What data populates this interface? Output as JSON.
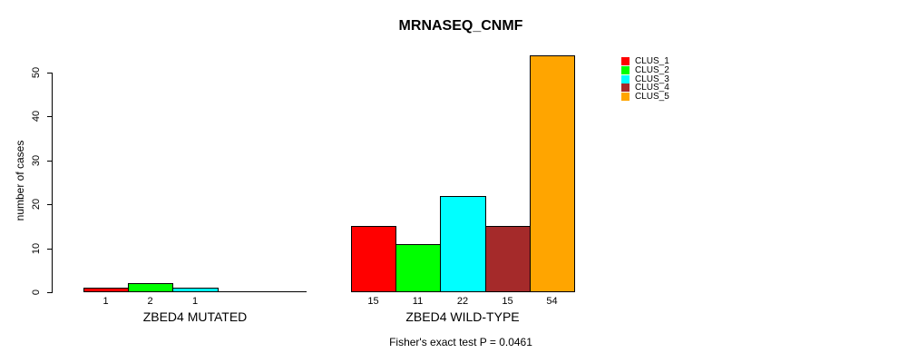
{
  "chart_data": {
    "type": "bar",
    "title": "MRNASEQ_CNMF",
    "ylabel": "number of cases",
    "footer": "Fisher's exact test P = 0.0461",
    "yticks": [
      0,
      10,
      20,
      30,
      40,
      50
    ],
    "ylim": [
      0,
      54
    ],
    "grid": false,
    "legend_position": "top-right",
    "legend": [
      {
        "label": "CLUS_1",
        "color": "#FF0000"
      },
      {
        "label": "CLUS_2",
        "color": "#00FF00"
      },
      {
        "label": "CLUS_3",
        "color": "#00FFFF"
      },
      {
        "label": "CLUS_4",
        "color": "#A52A2A"
      },
      {
        "label": "CLUS_5",
        "color": "#FFA500"
      }
    ],
    "groups": [
      {
        "label": "ZBED4 MUTATED",
        "values": [
          1,
          2,
          1,
          0,
          0
        ],
        "bar_labels": [
          "1",
          "2",
          "1",
          "",
          ""
        ]
      },
      {
        "label": "ZBED4 WILD-TYPE",
        "values": [
          15,
          11,
          22,
          15,
          54
        ],
        "bar_labels": [
          "15",
          "11",
          "22",
          "15",
          "54"
        ]
      }
    ]
  }
}
